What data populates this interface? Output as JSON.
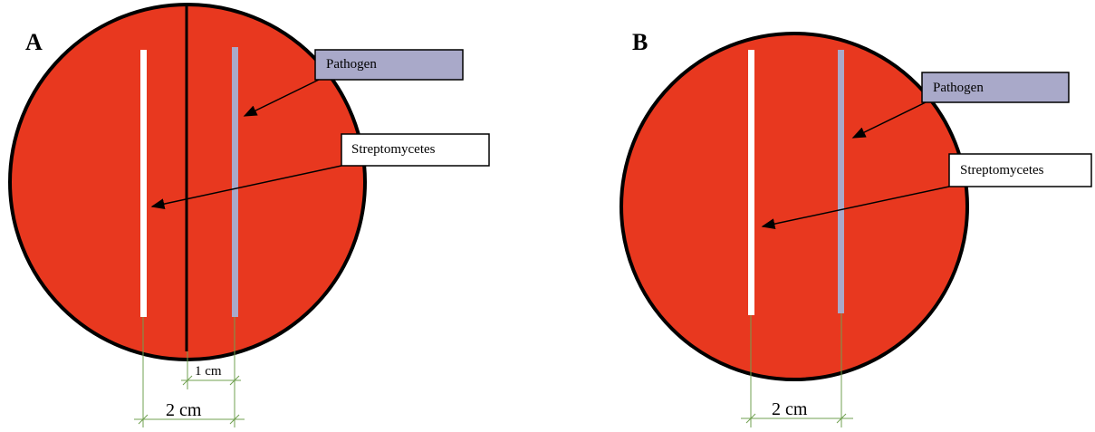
{
  "panels": [
    {
      "label": "A",
      "pathogen_label": "Pathogen",
      "streptomycetes_label": "Streptomycetes",
      "dimensions": [
        "1 cm",
        "2 cm"
      ]
    },
    {
      "label": "B",
      "pathogen_label": "Pathogen",
      "streptomycetes_label": "Streptomycetes",
      "dimensions": [
        "2 cm"
      ]
    }
  ]
}
